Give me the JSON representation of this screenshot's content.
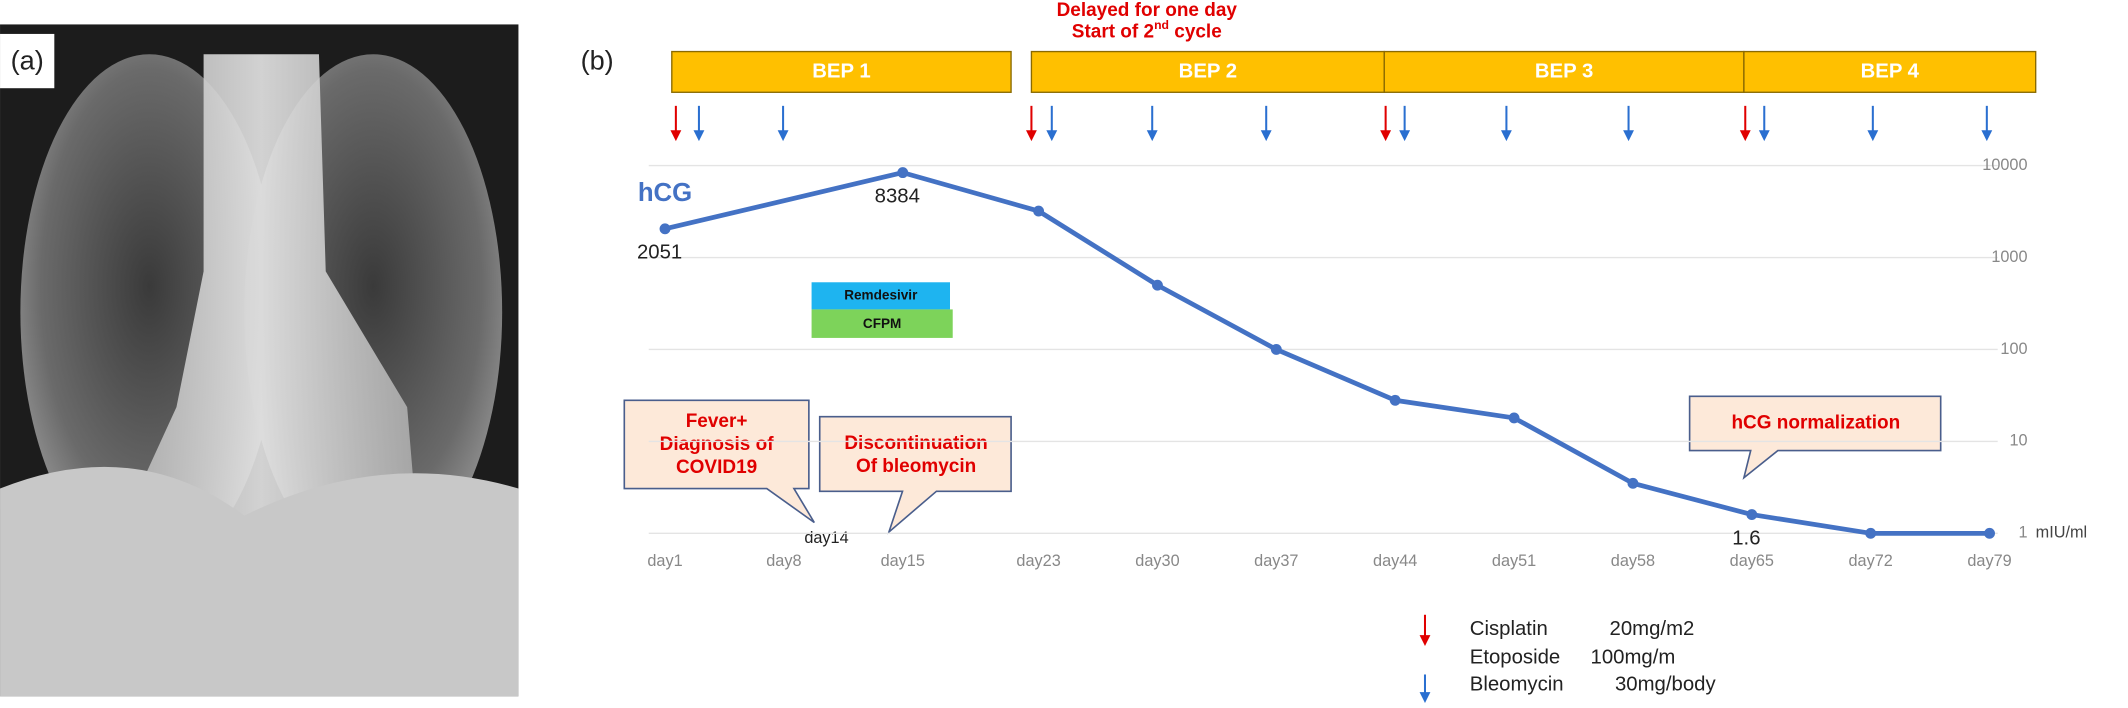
{
  "panel_a": {
    "label": "(a)"
  },
  "chart_data": {
    "type": "line",
    "panel_label": "(b)",
    "series": [
      {
        "name": "hCG",
        "color": "#4472c4",
        "x": [
          1,
          15,
          23,
          30,
          37,
          44,
          51,
          58,
          65,
          72,
          79
        ],
        "values": [
          2051,
          8384,
          3200,
          500,
          100,
          28,
          18,
          3.5,
          1.6,
          1,
          1
        ],
        "value_labels": [
          "2051",
          "8384",
          null,
          null,
          null,
          null,
          null,
          null,
          "1.6",
          null,
          null
        ]
      }
    ],
    "xlim": [
      1,
      79
    ],
    "xticks": [
      {
        "value": 1,
        "label": "day1"
      },
      {
        "value": 8,
        "label": "day8"
      },
      {
        "value": 15,
        "label": "day15"
      },
      {
        "value": 23,
        "label": "day23"
      },
      {
        "value": 30,
        "label": "day30"
      },
      {
        "value": 37,
        "label": "day37"
      },
      {
        "value": 44,
        "label": "day44"
      },
      {
        "value": 51,
        "label": "day51"
      },
      {
        "value": 58,
        "label": "day58"
      },
      {
        "value": 65,
        "label": "day65"
      },
      {
        "value": 72,
        "label": "day72"
      },
      {
        "value": 79,
        "label": "day79"
      }
    ],
    "ylim": [
      1,
      10000
    ],
    "yticks": [
      1,
      10,
      100,
      1000,
      10000
    ],
    "y_scale": "log",
    "y_unit": "mIU/ml",
    "grid": true,
    "cycles": [
      "BEP 1",
      "BEP 2",
      "BEP 3",
      "BEP 4"
    ],
    "delay_note": {
      "line1": "Delayed for one day",
      "line2": [
        "Start of 2",
        "nd",
        " cycle"
      ]
    },
    "drugs_box": [
      "Remdesivir",
      "CFPM"
    ],
    "callouts": {
      "fever": [
        "Fever+",
        "Diagnosis of",
        "COVID19"
      ],
      "day": "day14",
      "bleomycin": [
        "Discontinuation",
        "Of bleomycin"
      ],
      "normal": "hCG normalization"
    },
    "legend": [
      {
        "name": "Cisplatin",
        "dose": "20mg/m2"
      },
      {
        "name": "Etoposide",
        "dose": "100mg/m"
      },
      {
        "name": "Bleomycin",
        "dose": "30mg/body"
      }
    ]
  }
}
